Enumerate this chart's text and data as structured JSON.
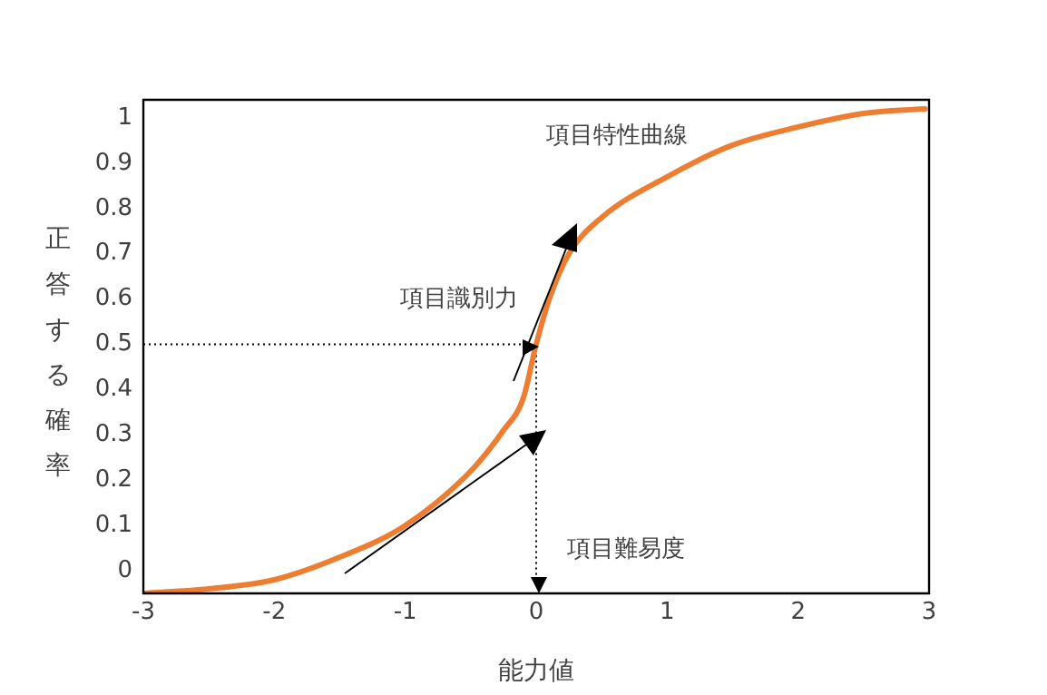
{
  "chart_data": {
    "type": "line",
    "xlabel": "能力値",
    "ylabel": "正答する確率",
    "x": [
      -3,
      -2.5,
      -2,
      -1.5,
      -1,
      -0.5,
      -0.25,
      -0.1,
      0,
      0.1,
      0.25,
      0.5,
      1,
      1.5,
      2,
      2.5,
      2.97
    ],
    "series": [
      {
        "color": "#ed7d31",
        "values": [
          -0.05,
          -0.04,
          -0.02,
          0.03,
          0.1,
          0.22,
          0.31,
          0.38,
          0.5,
          0.6,
          0.7,
          0.78,
          0.87,
          0.94,
          0.98,
          1.01,
          1.02
        ]
      }
    ],
    "xlim": [
      -3,
      3
    ],
    "xticks": [
      -3,
      -2,
      -1,
      0,
      1,
      2,
      3
    ],
    "ylim": [
      -0.05,
      1.04
    ],
    "yticks": [
      0,
      0.1,
      0.2,
      0.3,
      0.4,
      0.5,
      0.6,
      0.7,
      0.8,
      0.9,
      1
    ],
    "ref_lines": [
      {
        "axis": "y",
        "value": 0.5,
        "line_style": "dotted",
        "color": "#000000"
      },
      {
        "axis": "x",
        "value": 0,
        "line_style": "dotted",
        "color": "#000000"
      }
    ],
    "annotations": [
      "項目特性曲線",
      "項目識別力",
      "項目難易度"
    ],
    "grid": false,
    "legend": false,
    "marker": "none",
    "line_style": "solid"
  }
}
